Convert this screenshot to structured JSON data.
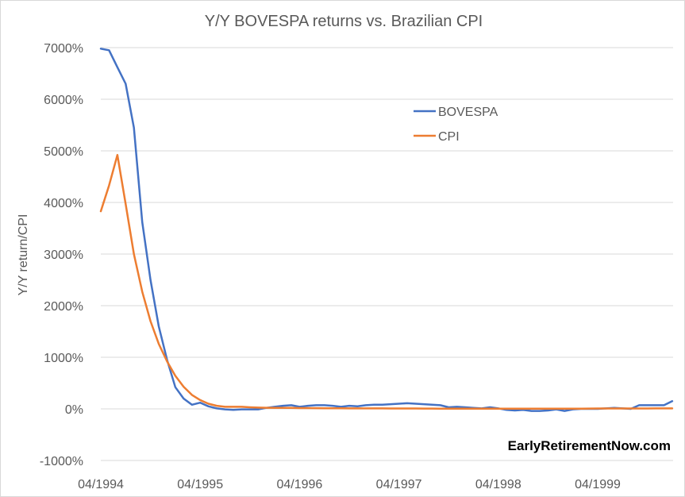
{
  "chart_data": {
    "type": "line",
    "title": "Y/Y BOVESPA returns vs. Brazilian CPI",
    "xlabel": "",
    "ylabel": "Y/Y return/CPI",
    "ylim": [
      -1000,
      7000
    ],
    "ytick_values": [
      -1000,
      0,
      1000,
      2000,
      3000,
      4000,
      5000,
      6000,
      7000
    ],
    "ytick_labels": [
      "-1000%",
      "0%",
      "1000%",
      "2000%",
      "3000%",
      "4000%",
      "5000%",
      "6000%",
      "7000%"
    ],
    "x_range_months": [
      "1994-04",
      "1999-09"
    ],
    "xtick_labels": [
      "04/1994",
      "04/1995",
      "04/1996",
      "04/1997",
      "04/1998",
      "04/1999"
    ],
    "xtick_months": [
      "1994-04",
      "1995-04",
      "1996-04",
      "1997-04",
      "1998-04",
      "1999-04"
    ],
    "grid": true,
    "legend_position": "upper-right inside plot",
    "series": [
      {
        "name": "BOVESPA",
        "color": "#4472C4",
        "points": [
          [
            "1994-04",
            6980
          ],
          [
            "1994-05",
            6950
          ],
          [
            "1994-06",
            6620
          ],
          [
            "1994-07",
            6300
          ],
          [
            "1994-08",
            5450
          ],
          [
            "1994-09",
            3620
          ],
          [
            "1994-10",
            2500
          ],
          [
            "1994-11",
            1600
          ],
          [
            "1994-12",
            950
          ],
          [
            "1995-01",
            420
          ],
          [
            "1995-02",
            200
          ],
          [
            "1995-03",
            80
          ],
          [
            "1995-04",
            120
          ],
          [
            "1995-05",
            50
          ],
          [
            "1995-06",
            10
          ],
          [
            "1995-07",
            -10
          ],
          [
            "1995-08",
            -20
          ],
          [
            "1995-09",
            -10
          ],
          [
            "1995-10",
            -10
          ],
          [
            "1995-11",
            -10
          ],
          [
            "1995-12",
            20
          ],
          [
            "1996-01",
            40
          ],
          [
            "1996-02",
            60
          ],
          [
            "1996-03",
            70
          ],
          [
            "1996-04",
            40
          ],
          [
            "1996-05",
            60
          ],
          [
            "1996-06",
            70
          ],
          [
            "1996-07",
            70
          ],
          [
            "1996-08",
            60
          ],
          [
            "1996-09",
            40
          ],
          [
            "1996-10",
            60
          ],
          [
            "1996-11",
            50
          ],
          [
            "1996-12",
            70
          ],
          [
            "1997-01",
            80
          ],
          [
            "1997-02",
            80
          ],
          [
            "1997-03",
            90
          ],
          [
            "1997-04",
            100
          ],
          [
            "1997-05",
            110
          ],
          [
            "1997-06",
            100
          ],
          [
            "1997-07",
            90
          ],
          [
            "1997-08",
            80
          ],
          [
            "1997-09",
            70
          ],
          [
            "1997-10",
            30
          ],
          [
            "1997-11",
            40
          ],
          [
            "1997-12",
            30
          ],
          [
            "1998-01",
            20
          ],
          [
            "1998-02",
            10
          ],
          [
            "1998-03",
            30
          ],
          [
            "1998-04",
            10
          ],
          [
            "1998-05",
            -20
          ],
          [
            "1998-06",
            -30
          ],
          [
            "1998-07",
            -20
          ],
          [
            "1998-08",
            -40
          ],
          [
            "1998-09",
            -40
          ],
          [
            "1998-10",
            -30
          ],
          [
            "1998-11",
            -10
          ],
          [
            "1998-12",
            -40
          ],
          [
            "1999-01",
            -10
          ],
          [
            "1999-02",
            0
          ],
          [
            "1999-03",
            0
          ],
          [
            "1999-04",
            0
          ],
          [
            "1999-05",
            10
          ],
          [
            "1999-06",
            20
          ],
          [
            "1999-07",
            10
          ],
          [
            "1999-08",
            0
          ],
          [
            "1999-09",
            70
          ],
          [
            "1999-10",
            70
          ],
          [
            "1999-11",
            70
          ],
          [
            "1999-12",
            70
          ],
          [
            "2000-01",
            150
          ]
        ]
      },
      {
        "name": "CPI",
        "color": "#ED7D31",
        "points": [
          [
            "1994-04",
            3830
          ],
          [
            "1994-05",
            4330
          ],
          [
            "1994-06",
            4920
          ],
          [
            "1994-07",
            3970
          ],
          [
            "1994-08",
            3000
          ],
          [
            "1994-09",
            2270
          ],
          [
            "1994-10",
            1700
          ],
          [
            "1994-11",
            1260
          ],
          [
            "1994-12",
            920
          ],
          [
            "1995-01",
            640
          ],
          [
            "1995-02",
            430
          ],
          [
            "1995-03",
            270
          ],
          [
            "1995-04",
            170
          ],
          [
            "1995-05",
            100
          ],
          [
            "1995-06",
            60
          ],
          [
            "1995-07",
            40
          ],
          [
            "1995-08",
            40
          ],
          [
            "1995-09",
            40
          ],
          [
            "1995-10",
            30
          ],
          [
            "1995-11",
            25
          ],
          [
            "1995-12",
            22
          ],
          [
            "1996-01",
            20
          ],
          [
            "1996-02",
            20
          ],
          [
            "1996-03",
            18
          ],
          [
            "1996-04",
            16
          ],
          [
            "1996-05",
            15
          ],
          [
            "1996-06",
            14
          ],
          [
            "1996-07",
            13
          ],
          [
            "1996-08",
            12
          ],
          [
            "1996-09",
            11
          ],
          [
            "1996-10",
            10
          ],
          [
            "1996-11",
            10
          ],
          [
            "1996-12",
            10
          ],
          [
            "1997-01",
            9
          ],
          [
            "1997-02",
            9
          ],
          [
            "1997-03",
            8
          ],
          [
            "1997-04",
            8
          ],
          [
            "1997-05",
            7
          ],
          [
            "1997-06",
            7
          ],
          [
            "1997-07",
            6
          ],
          [
            "1997-08",
            6
          ],
          [
            "1997-09",
            5
          ],
          [
            "1997-10",
            5
          ],
          [
            "1997-11",
            5
          ],
          [
            "1997-12",
            5
          ],
          [
            "1998-01",
            4
          ],
          [
            "1998-02",
            4
          ],
          [
            "1998-03",
            4
          ],
          [
            "1998-04",
            4
          ],
          [
            "1998-05",
            3
          ],
          [
            "1998-06",
            3
          ],
          [
            "1998-07",
            3
          ],
          [
            "1998-08",
            3
          ],
          [
            "1998-09",
            3
          ],
          [
            "1998-10",
            3
          ],
          [
            "1998-11",
            3
          ],
          [
            "1998-12",
            3
          ],
          [
            "1999-01",
            4
          ],
          [
            "1999-02",
            5
          ],
          [
            "1999-03",
            6
          ],
          [
            "1999-04",
            7
          ],
          [
            "1999-05",
            7
          ],
          [
            "1999-06",
            7
          ],
          [
            "1999-07",
            8
          ],
          [
            "1999-08",
            8
          ],
          [
            "1999-09",
            8
          ],
          [
            "1999-10",
            8
          ],
          [
            "1999-11",
            9
          ],
          [
            "1999-12",
            9
          ],
          [
            "2000-01",
            9
          ]
        ]
      }
    ],
    "watermark": "EarlyRetirementNow.com"
  }
}
